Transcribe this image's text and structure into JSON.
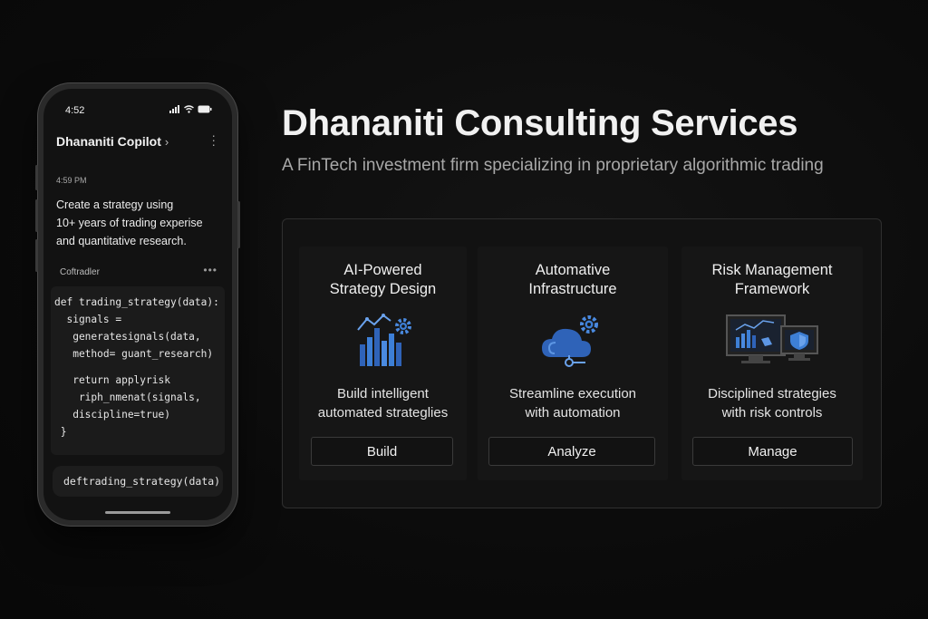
{
  "phone": {
    "status_time": "4:52",
    "chat_title": "Dhananiti Copilot",
    "message_time": "4:59 PM",
    "message_lines": [
      "Create a strategy using",
      "10+ years of trading experise",
      "and quantitative research."
    ],
    "sender": "Coftradler",
    "code_lines": [
      "def trading_strategy(data):",
      "  signals =",
      "   generatesignals(data,",
      "   method= guant_research)",
      "",
      "   return applyrisk",
      "    riph_nmenat(signals,",
      "   discipline=true)",
      " }"
    ],
    "prompt_text": "deftrading_strategy(data)"
  },
  "header": {
    "title": "Dhananiti Consulting Services",
    "subtitle": "A FinTech investment firm specializing in proprietary algorithmic trading"
  },
  "cards": [
    {
      "title_lines": [
        "AI-Powered",
        "Strategy Design"
      ],
      "icon": "bar-chart-gear-icon",
      "desc_lines": [
        "Build intelligent",
        "automated strateglies"
      ],
      "button": "Build"
    },
    {
      "title_lines": [
        "Automative",
        "Infrastructure"
      ],
      "icon": "cloud-gear-icon",
      "desc_lines": [
        "Streamline execution",
        "with automation"
      ],
      "button": "Analyze"
    },
    {
      "title_lines": [
        "Risk Management",
        "Framework"
      ],
      "icon": "monitor-shield-icon",
      "desc_lines": [
        "Disciplined strategies",
        "with risk controls"
      ],
      "button": "Manage"
    }
  ],
  "colors": {
    "accent_blue": "#3d7fd6",
    "background": "#0b0b0b"
  }
}
